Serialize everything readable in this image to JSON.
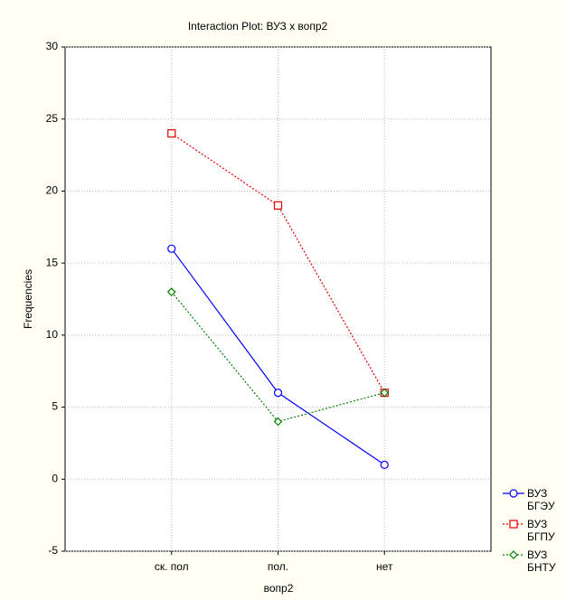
{
  "chart_data": {
    "type": "line",
    "title": "Interaction Plot: ВУЗ x вопр2",
    "x_label": "вопр2",
    "y_label": "Frequencies",
    "categories": [
      "ск. пол",
      "пол.",
      "нет"
    ],
    "series": [
      {
        "name": "ВУЗ БГЭУ",
        "color": "#0000ff",
        "marker": "circle",
        "dash": "solid",
        "values": [
          16,
          6,
          1
        ]
      },
      {
        "name": "ВУЗ БГПУ",
        "color": "#e00000",
        "marker": "square",
        "dash": "dotted",
        "values": [
          24,
          19,
          6
        ]
      },
      {
        "name": "ВУЗ БНТУ",
        "color": "#008000",
        "marker": "diamond",
        "dash": "dotted",
        "values": [
          13,
          4,
          6
        ]
      }
    ],
    "ylim": [
      -5,
      30
    ],
    "yticks": [
      -5,
      0,
      5,
      10,
      15,
      20,
      25,
      30
    ],
    "grid": true,
    "legend": "bottom-right"
  }
}
